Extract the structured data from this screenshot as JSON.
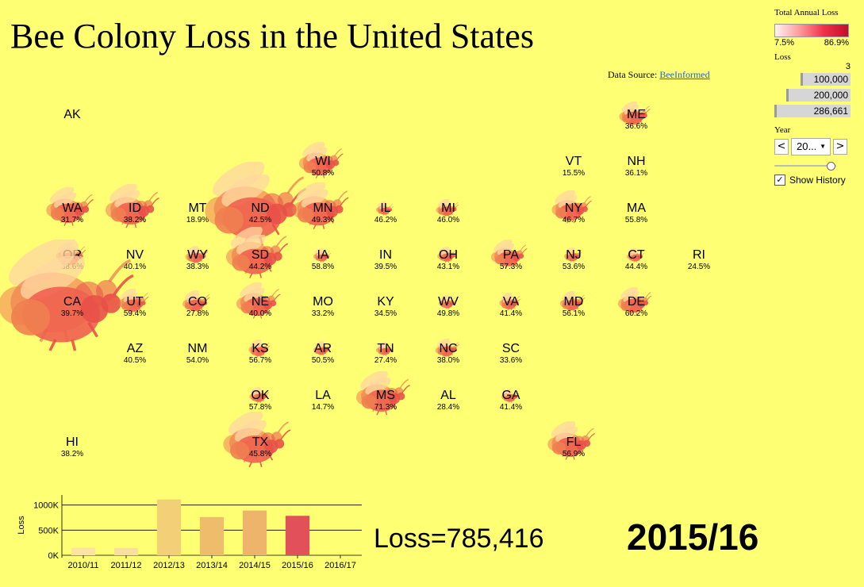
{
  "title": "Bee Colony Loss in the United States",
  "source": {
    "label": "Data Source:",
    "link": "BeeInformed"
  },
  "legend": {
    "title": "Total Annual Loss",
    "min_label": "7.5%",
    "max_label": "86.9%",
    "colors": [
      "#fff4f0",
      "#c0102a"
    ]
  },
  "loss_legend": {
    "title": "Loss",
    "count": "3",
    "items": [
      {
        "label": "100,000",
        "value": 100000
      },
      {
        "label": "200,000",
        "value": 200000
      },
      {
        "label": "286,661",
        "value": 286661
      }
    ]
  },
  "year_control": {
    "label": "Year",
    "selected": "20...",
    "prev": "<",
    "next": ">",
    "slider_fraction": 0.95
  },
  "history": {
    "label": "Show History",
    "checked": "✓"
  },
  "states": [
    {
      "abbr": "AK",
      "pct": "",
      "col": 1,
      "row": 0,
      "loss": 0
    },
    {
      "abbr": "ME",
      "pct": "36.6%",
      "col": 10,
      "row": 0,
      "loss": 15000
    },
    {
      "abbr": "WI",
      "pct": "50.8%",
      "col": 5,
      "row": 1,
      "loss": 30000
    },
    {
      "abbr": "VT",
      "pct": "15.5%",
      "col": 9,
      "row": 1,
      "loss": 0
    },
    {
      "abbr": "NH",
      "pct": "36.1%",
      "col": 10,
      "row": 1,
      "loss": 0
    },
    {
      "abbr": "WA",
      "pct": "31.7%",
      "col": 1,
      "row": 2,
      "loss": 35000
    },
    {
      "abbr": "ID",
      "pct": "38.2%",
      "col": 2,
      "row": 2,
      "loss": 45000
    },
    {
      "abbr": "MT",
      "pct": "18.9%",
      "col": 3,
      "row": 2,
      "loss": 0
    },
    {
      "abbr": "ND",
      "pct": "42.5%",
      "col": 4,
      "row": 2,
      "loss": 160000
    },
    {
      "abbr": "MN",
      "pct": "49.3%",
      "col": 5,
      "row": 2,
      "loss": 50000
    },
    {
      "abbr": "IL",
      "pct": "46.2%",
      "col": 6,
      "row": 2,
      "loss": 4000
    },
    {
      "abbr": "MI",
      "pct": "46.0%",
      "col": 7,
      "row": 2,
      "loss": 8000
    },
    {
      "abbr": "NY",
      "pct": "46.7%",
      "col": 9,
      "row": 2,
      "loss": 25000
    },
    {
      "abbr": "MA",
      "pct": "55.8%",
      "col": 10,
      "row": 2,
      "loss": 0
    },
    {
      "abbr": "OR",
      "pct": "38.6%",
      "col": 1,
      "row": 3,
      "loss": 14000
    },
    {
      "abbr": "NV",
      "pct": "40.1%",
      "col": 2,
      "row": 3,
      "loss": 0
    },
    {
      "abbr": "WY",
      "pct": "38.3%",
      "col": 3,
      "row": 3,
      "loss": 8000
    },
    {
      "abbr": "SD",
      "pct": "44.2%",
      "col": 4,
      "row": 3,
      "loss": 60000
    },
    {
      "abbr": "IA",
      "pct": "58.8%",
      "col": 5,
      "row": 3,
      "loss": 3000
    },
    {
      "abbr": "IN",
      "pct": "39.5%",
      "col": 6,
      "row": 3,
      "loss": 0
    },
    {
      "abbr": "OH",
      "pct": "43.1%",
      "col": 7,
      "row": 3,
      "loss": 6000
    },
    {
      "abbr": "PA",
      "pct": "57.3%",
      "col": 8,
      "row": 3,
      "loss": 20000
    },
    {
      "abbr": "NJ",
      "pct": "53.6%",
      "col": 9,
      "row": 3,
      "loss": 5000
    },
    {
      "abbr": "CT",
      "pct": "44.4%",
      "col": 10,
      "row": 3,
      "loss": 3000
    },
    {
      "abbr": "RI",
      "pct": "24.5%",
      "col": 11,
      "row": 3,
      "loss": 0
    },
    {
      "abbr": "CA",
      "pct": "39.7%",
      "col": 1,
      "row": 4,
      "loss": 286661
    },
    {
      "abbr": "UT",
      "pct": "59.4%",
      "col": 2,
      "row": 4,
      "loss": 14000
    },
    {
      "abbr": "CO",
      "pct": "27.8%",
      "col": 3,
      "row": 4,
      "loss": 12000
    },
    {
      "abbr": "NE",
      "pct": "40.0%",
      "col": 4,
      "row": 4,
      "loss": 30000
    },
    {
      "abbr": "MO",
      "pct": "33.2%",
      "col": 5,
      "row": 4,
      "loss": 0
    },
    {
      "abbr": "KY",
      "pct": "34.5%",
      "col": 6,
      "row": 4,
      "loss": 0
    },
    {
      "abbr": "WV",
      "pct": "49.8%",
      "col": 7,
      "row": 4,
      "loss": 2000
    },
    {
      "abbr": "VA",
      "pct": "41.4%",
      "col": 8,
      "row": 4,
      "loss": 7000
    },
    {
      "abbr": "MD",
      "pct": "56.1%",
      "col": 9,
      "row": 4,
      "loss": 10000
    },
    {
      "abbr": "DE",
      "pct": "60.2%",
      "col": 10,
      "row": 4,
      "loss": 18000
    },
    {
      "abbr": "AZ",
      "pct": "40.5%",
      "col": 2,
      "row": 5,
      "loss": 0
    },
    {
      "abbr": "NM",
      "pct": "54.0%",
      "col": 3,
      "row": 5,
      "loss": 0
    },
    {
      "abbr": "KS",
      "pct": "56.7%",
      "col": 4,
      "row": 5,
      "loss": 7000
    },
    {
      "abbr": "AR",
      "pct": "50.5%",
      "col": 5,
      "row": 5,
      "loss": 5000
    },
    {
      "abbr": "TN",
      "pct": "27.4%",
      "col": 6,
      "row": 5,
      "loss": 2000
    },
    {
      "abbr": "NC",
      "pct": "38.0%",
      "col": 7,
      "row": 5,
      "loss": 9000
    },
    {
      "abbr": "SC",
      "pct": "33.6%",
      "col": 8,
      "row": 5,
      "loss": 0
    },
    {
      "abbr": "OK",
      "pct": "57.8%",
      "col": 4,
      "row": 6,
      "loss": 6000
    },
    {
      "abbr": "LA",
      "pct": "14.7%",
      "col": 5,
      "row": 6,
      "loss": 0
    },
    {
      "abbr": "MS",
      "pct": "71.3%",
      "col": 6,
      "row": 6,
      "loss": 45000
    },
    {
      "abbr": "AL",
      "pct": "28.4%",
      "col": 7,
      "row": 6,
      "loss": 0
    },
    {
      "abbr": "GA",
      "pct": "41.4%",
      "col": 8,
      "row": 6,
      "loss": 4000
    },
    {
      "abbr": "HI",
      "pct": "38.2%",
      "col": 1,
      "row": 7,
      "loss": 0
    },
    {
      "abbr": "TX",
      "pct": "45.8%",
      "col": 4,
      "row": 7,
      "loss": 70000
    },
    {
      "abbr": "FL",
      "pct": "56.9%",
      "col": 9,
      "row": 7,
      "loss": 35000
    }
  ],
  "chart_data": {
    "type": "bar",
    "categories": [
      "2010/11",
      "2011/12",
      "2012/13",
      "2013/14",
      "2014/15",
      "2015/16",
      "2016/17"
    ],
    "values": [
      150000,
      145000,
      1110000,
      760000,
      890000,
      785416,
      0
    ],
    "ylabel": "Loss",
    "yticks": [
      "0K",
      "500K",
      "1000K"
    ],
    "ylim": [
      0,
      1200000
    ],
    "colors": [
      "#fbe3a3",
      "#f9df9e",
      "#f3cf77",
      "#eebd6c",
      "#eeb46b",
      "#e2515a",
      "#ffff73"
    ],
    "selected_index": 5,
    "grid": true
  },
  "loss_text": "Loss=785,416",
  "current_year": "2015/16"
}
